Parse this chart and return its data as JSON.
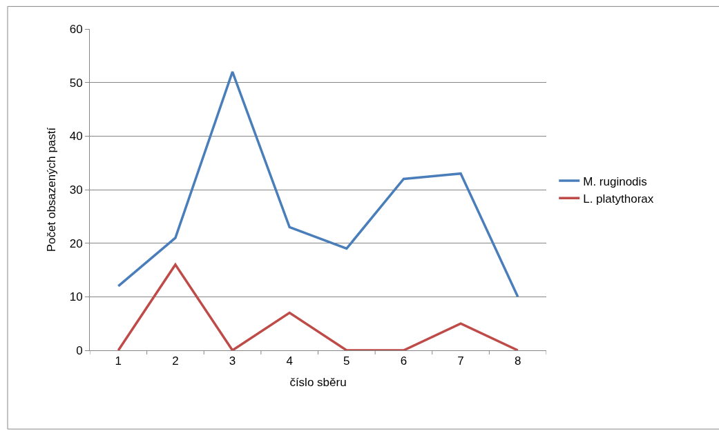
{
  "chart_data": {
    "type": "line",
    "xlabel": "číslo sběru",
    "ylabel": "Počet obsazených pastí",
    "categories": [
      "1",
      "2",
      "3",
      "4",
      "5",
      "6",
      "7",
      "8"
    ],
    "series": [
      {
        "name": "M. ruginodis",
        "color": "#4a7ebb",
        "values": [
          12,
          21,
          52,
          23,
          19,
          32,
          33,
          10
        ]
      },
      {
        "name": "L. platythorax",
        "color": "#be4b48",
        "values": [
          0,
          16,
          0,
          7,
          0,
          0,
          5,
          0
        ]
      }
    ],
    "ylim": [
      0,
      60
    ],
    "yticks": [
      0,
      10,
      20,
      30,
      40,
      50,
      60
    ],
    "grid": "y",
    "legend": "right",
    "marker": "none",
    "line_style": "solid"
  }
}
